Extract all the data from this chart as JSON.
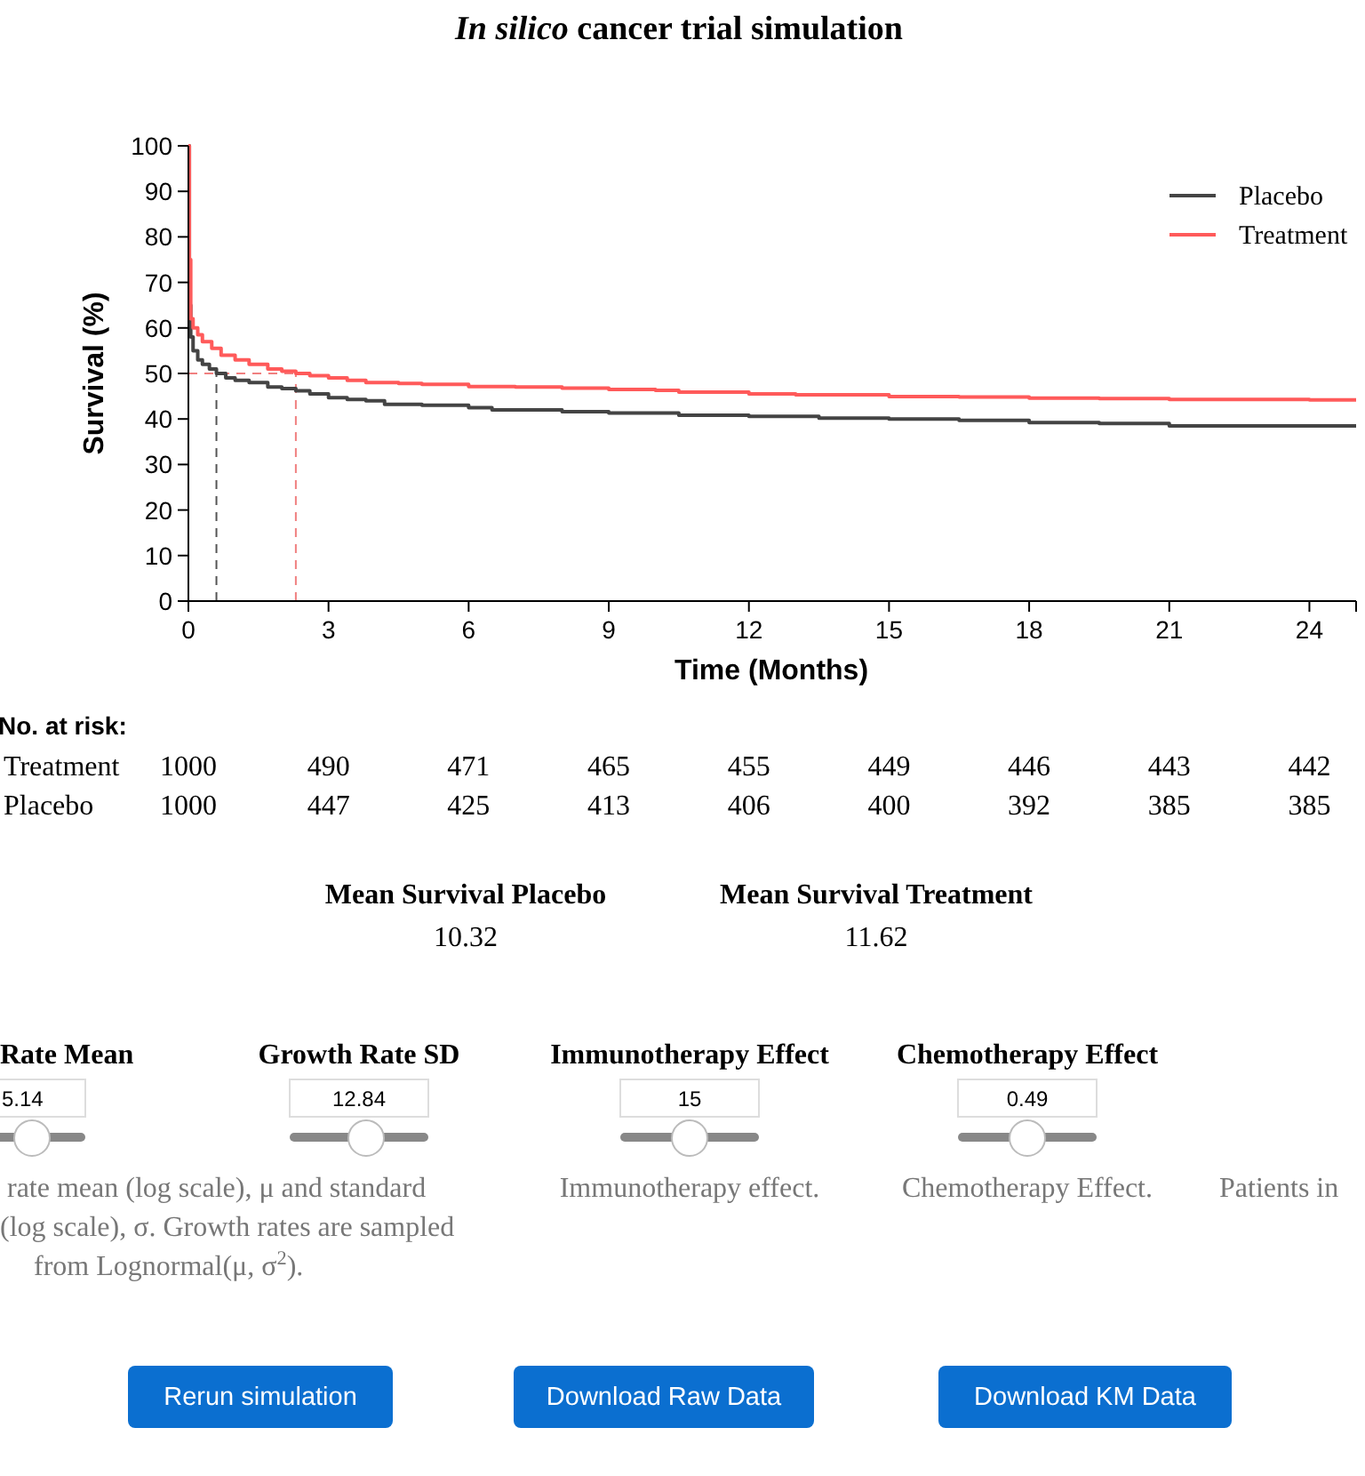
{
  "chart_data": [
    {
      "type": "step",
      "title": "In silico cancer trial simulation",
      "xlabel": "Time (Months)",
      "ylabel": "Survival (%)",
      "xlim": [
        0,
        25
      ],
      "ylim": [
        0,
        100
      ],
      "xticks": [
        0,
        3,
        6,
        9,
        12,
        15,
        18,
        21,
        24
      ],
      "yticks": [
        0,
        10,
        20,
        30,
        40,
        50,
        60,
        70,
        80,
        90,
        100
      ],
      "legend": "top right",
      "line_style": "solid",
      "series": [
        {
          "name": "Placebo",
          "color": "#444444",
          "x": [
            0,
            0.02,
            0.05,
            0.1,
            0.2,
            0.3,
            0.45,
            0.6,
            0.8,
            1,
            1.3,
            1.7,
            2,
            2.3,
            2.6,
            3,
            3.4,
            3.8,
            4.2,
            5,
            6,
            6.5,
            8,
            9,
            10.5,
            12,
            13.5,
            15,
            16.5,
            18,
            19.5,
            21,
            22.5,
            24,
            25
          ],
          "values": [
            100,
            65,
            58,
            55,
            53,
            52,
            51,
            50,
            49,
            48.5,
            48,
            47,
            46.7,
            46.2,
            45.5,
            44.7,
            44.3,
            44,
            43.2,
            43,
            42.5,
            42,
            41.6,
            41.3,
            40.8,
            40.6,
            40.2,
            40,
            39.7,
            39.2,
            39,
            38.5,
            38.5,
            38.5,
            38.5
          ]
        },
        {
          "name": "Treatment",
          "color": "#ff5a5a",
          "x": [
            0,
            0.02,
            0.05,
            0.1,
            0.2,
            0.3,
            0.5,
            0.7,
            1,
            1.3,
            1.7,
            2,
            2.3,
            2.6,
            3,
            3.4,
            3.8,
            4.5,
            5,
            6,
            7,
            8,
            9,
            10,
            10.5,
            12,
            13,
            15,
            16.5,
            18,
            19.5,
            21,
            22.5,
            24,
            25
          ],
          "values": [
            100,
            75,
            62,
            60,
            58.5,
            57,
            55.5,
            54,
            53,
            52,
            51,
            50.5,
            50,
            49.5,
            49,
            48.5,
            48,
            47.8,
            47.6,
            47.1,
            47,
            46.8,
            46.5,
            46.3,
            45.9,
            45.5,
            45.3,
            44.9,
            44.8,
            44.6,
            44.5,
            44.3,
            44.3,
            44.2,
            44.2
          ]
        }
      ],
      "ref_lines": [
        {
          "axis": "x",
          "value": 0.6,
          "color": "#555555",
          "line_style": "dashed"
        },
        {
          "axis": "x",
          "value": 2.3,
          "color": "#f08080",
          "line_style": "dashed"
        },
        {
          "axis": "y",
          "value": 50,
          "color": "#f08080",
          "line_style": "dashed"
        }
      ],
      "annotations": [
        "No. at risk:",
        "Treatment 1000 490 471 465 455 449 446 443 442",
        "Placebo 1000 447 425 413 406 400 392 385 385",
        "Mean Survival Placebo",
        "10.32",
        "Mean Survival Treatment",
        "11.62"
      ]
    },
    {
      "type": "other",
      "annotations": [
        "Rate Mean",
        "5.14",
        "Growth Rate SD",
        "12.84",
        "Immunotherapy Effect",
        "15",
        "Chemotherapy Effect",
        "0.49",
        "rate mean (log scale), μ and standard",
        "(log scale), σ. Growth rates are sampled",
        "from Lognormal(μ, σ$^{2}$).",
        "Immunotherapy effect.",
        "Chemotherapy Effect.",
        "Patients in",
        "Rerun simulation",
        "Download Raw Data",
        "Download KM Data"
      ]
    }
  ]
}
